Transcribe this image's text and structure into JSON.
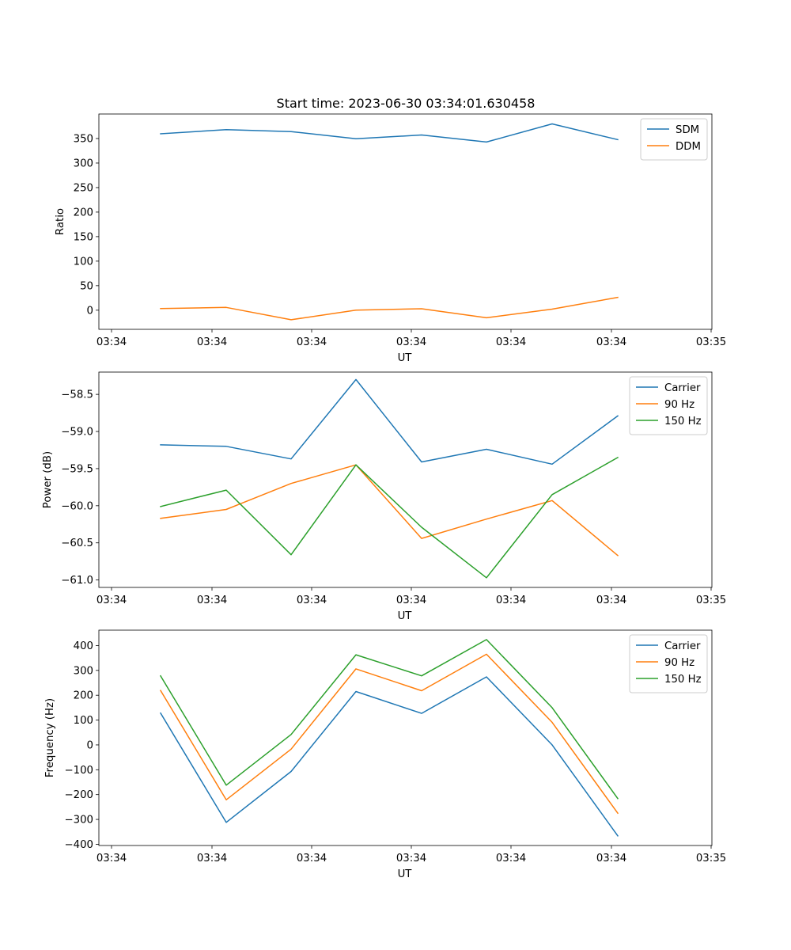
{
  "figure": {
    "title": "Start time: 2023-06-30 03:34:01.630458"
  },
  "colors": {
    "blue": "#1f77b4",
    "orange": "#ff7f0e",
    "green": "#2ca02c"
  },
  "chart_data": [
    {
      "type": "line",
      "title": "Start time: 2023-06-30 03:34:01.630458",
      "xlabel": "UT",
      "ylabel": "Ratio",
      "x_tick_labels": [
        "03:34",
        "03:34",
        "03:34",
        "03:34",
        "03:34",
        "03:34",
        "03:35"
      ],
      "y_ticks": [
        0,
        50,
        100,
        150,
        200,
        250,
        300,
        350
      ],
      "ylim": [
        -39,
        400
      ],
      "legend_position": "top-right",
      "series": [
        {
          "name": "SDM",
          "color": "#1f77b4",
          "values": [
            359.6,
            368.1,
            364.2,
            349.5,
            357.3,
            342.9,
            379.8,
            347.7
          ]
        },
        {
          "name": "DDM",
          "color": "#ff7f0e",
          "values": [
            3.4,
            5.7,
            -19.5,
            0.3,
            2.9,
            -15.4,
            2.2,
            26.2
          ]
        }
      ]
    },
    {
      "type": "line",
      "title": "",
      "xlabel": "UT",
      "ylabel": "Power (dB)",
      "x_tick_labels": [
        "03:34",
        "03:34",
        "03:34",
        "03:34",
        "03:34",
        "03:34",
        "03:35"
      ],
      "y_ticks": [
        -61.0,
        -60.5,
        -60.0,
        -59.5,
        -59.0,
        -58.5
      ],
      "y_tick_labels": [
        "−61.0",
        "−60.5",
        "−60.0",
        "−59.5",
        "−59.0",
        "−58.5"
      ],
      "ylim": [
        -61.1,
        -58.2
      ],
      "legend_position": "top-right",
      "series": [
        {
          "name": "Carrier",
          "color": "#1f77b4",
          "values": [
            -59.18,
            -59.2,
            -59.37,
            -58.3,
            -59.41,
            -59.24,
            -59.44,
            -58.79
          ]
        },
        {
          "name": "90 Hz",
          "color": "#ff7f0e",
          "values": [
            -60.17,
            -60.05,
            -59.7,
            -59.45,
            -60.44,
            -60.18,
            -59.93,
            -60.67
          ]
        },
        {
          "name": "150 Hz",
          "color": "#2ca02c",
          "values": [
            -60.01,
            -59.79,
            -60.66,
            -59.45,
            -60.29,
            -60.97,
            -59.85,
            -59.35
          ]
        }
      ]
    },
    {
      "type": "line",
      "title": "",
      "xlabel": "UT",
      "ylabel": "Frequency (Hz)",
      "x_tick_labels": [
        "03:34",
        "03:34",
        "03:34",
        "03:34",
        "03:34",
        "03:34",
        "03:35"
      ],
      "y_ticks": [
        -400,
        -300,
        -200,
        -100,
        0,
        100,
        200,
        300,
        400
      ],
      "y_tick_labels": [
        "−400",
        "−300",
        "−200",
        "−100",
        "0",
        "100",
        "200",
        "300",
        "400"
      ],
      "ylim": [
        -405,
        462
      ],
      "legend_position": "top-right",
      "series": [
        {
          "name": "Carrier",
          "color": "#1f77b4",
          "values": [
            128,
            -312,
            -107,
            215,
            127,
            274,
            0,
            -366
          ]
        },
        {
          "name": "90 Hz",
          "color": "#ff7f0e",
          "values": [
            219,
            -221,
            -17,
            306,
            218,
            365,
            91,
            -275
          ]
        },
        {
          "name": "150 Hz",
          "color": "#2ca02c",
          "values": [
            278,
            -162,
            42,
            363,
            278,
            424,
            150,
            -216
          ]
        }
      ]
    }
  ]
}
